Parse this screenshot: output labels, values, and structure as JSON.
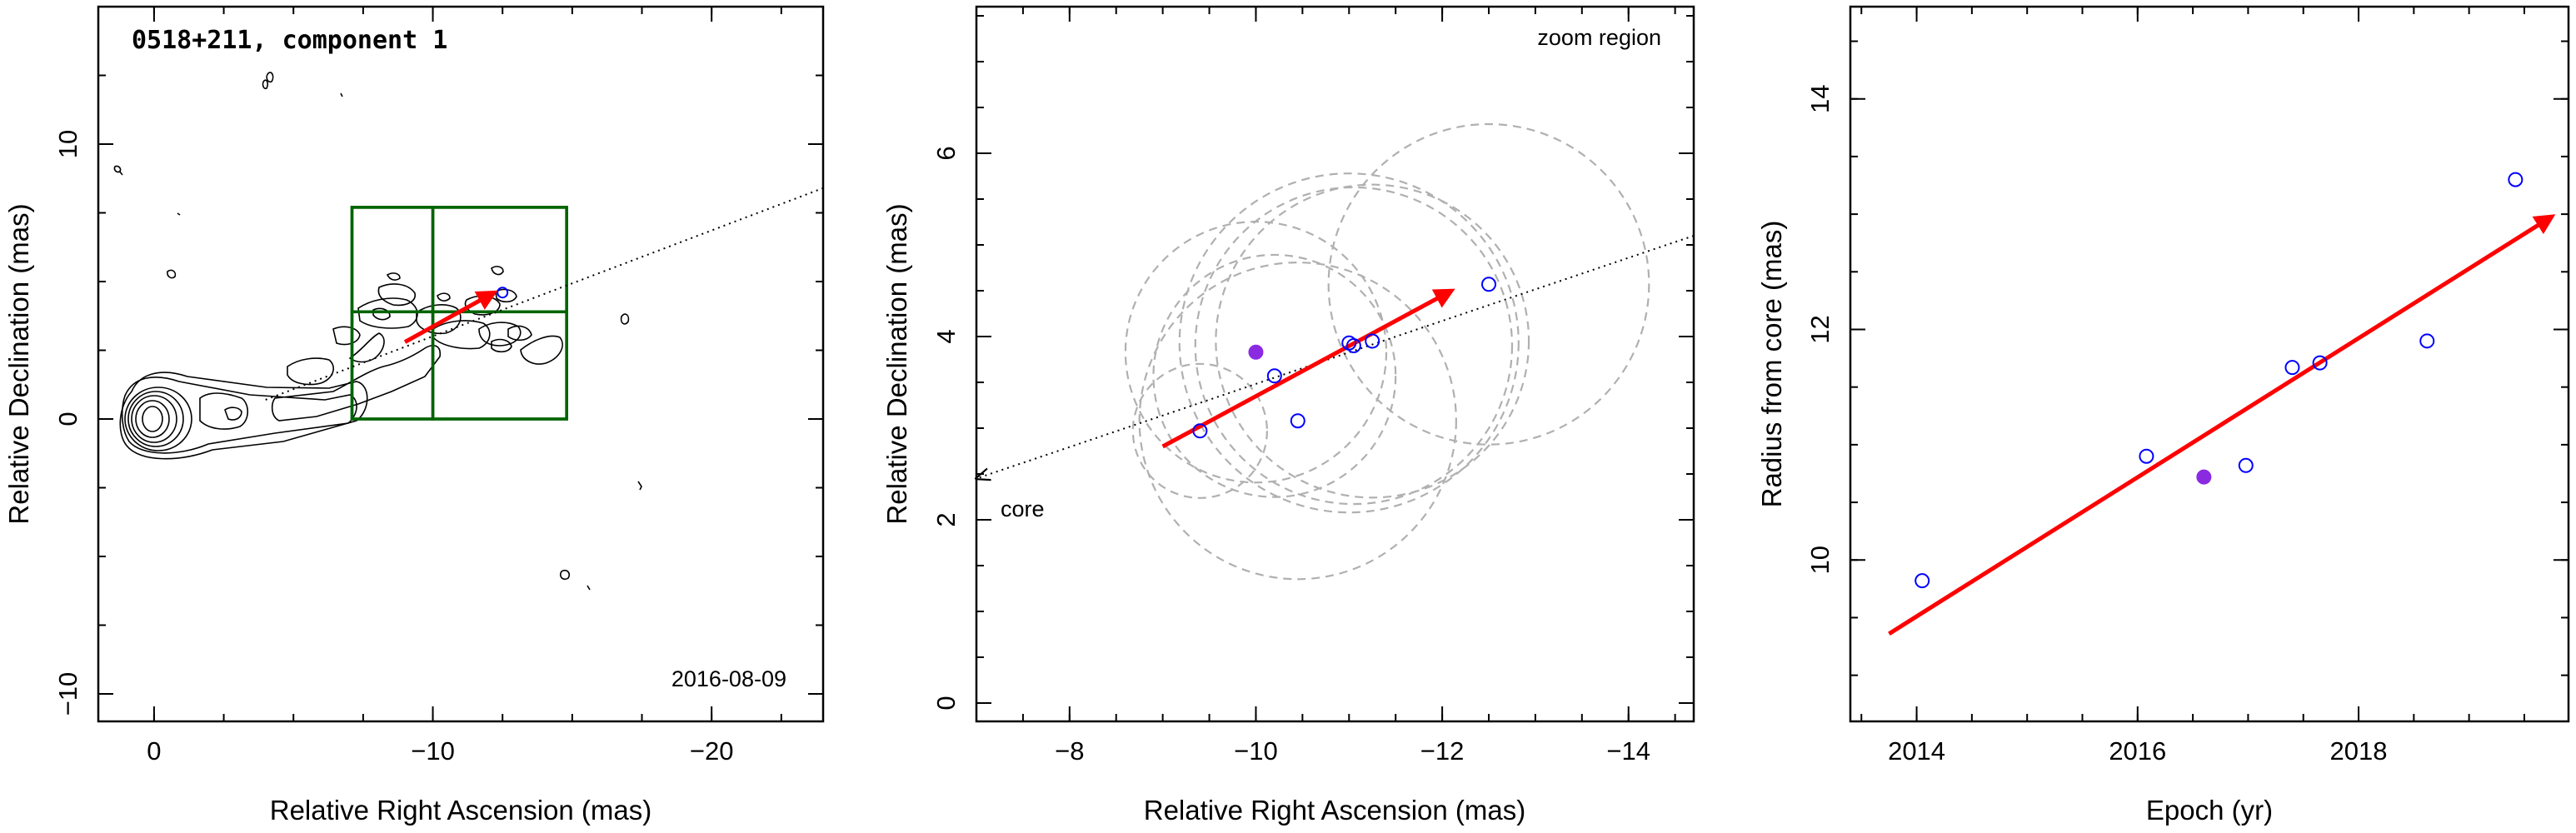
{
  "chart_data": [
    {
      "type": "scatter",
      "title": "0518+211, component 1",
      "date_label": "2016-08-09",
      "xlabel": "Relative Right Ascension (mas)",
      "ylabel": "Relative Declination (mas)",
      "xlim": [
        2,
        -24
      ],
      "ylim": [
        -11,
        15
      ],
      "x_ticks": [
        0,
        -10,
        -20
      ],
      "y_ticks": [
        -10,
        0,
        10
      ],
      "x_tick_labels": [
        "0",
        "−10",
        "−20"
      ],
      "y_tick_labels": [
        "−10",
        "0",
        "10"
      ],
      "series": [
        {
          "x": [
            -12.5
          ],
          "y": [
            4.6
          ]
        }
      ],
      "jet_direction_line": {
        "from": [
          -4.0,
          0.7
        ],
        "to": [
          -24,
          8.4
        ]
      },
      "zoom_boxes": [
        {
          "x0": -7.1,
          "x1": -14.8,
          "y0": 0.0,
          "y1": 7.7
        },
        {
          "x0": -7.1,
          "x1": -10.0,
          "y0": 0.0,
          "y1": 3.9
        },
        {
          "x0": -10.0,
          "x1": -14.8,
          "y0": 0.0,
          "y1": 3.9
        },
        {
          "x0": -7.1,
          "x1": -10.0,
          "y0": 3.9,
          "y1": 7.7
        },
        {
          "x0": -10.0,
          "x1": -14.8,
          "y0": 3.9,
          "y1": 7.7
        }
      ],
      "motion_vector": {
        "from": [
          -9.0,
          2.8
        ],
        "to": [
          -12.2,
          4.6
        ]
      },
      "colors": {
        "zoom_box": "#006400",
        "vector": "#ff0000",
        "points": "#0000ff",
        "contours": "#000000"
      }
    },
    {
      "type": "scatter",
      "annotation_top": "zoom region",
      "annotation_core": "core",
      "xlabel": "Relative Right Ascension (mas)",
      "ylabel": "Relative Declination (mas)",
      "xlim": [
        -7.0,
        -14.7
      ],
      "ylim": [
        -0.2,
        7.6
      ],
      "x_ticks": [
        -8,
        -10,
        -12,
        -14
      ],
      "y_ticks": [
        0,
        2,
        4,
        6
      ],
      "x_tick_labels": [
        "−8",
        "−10",
        "−12",
        "−14"
      ],
      "y_tick_labels": [
        "0",
        "2",
        "4",
        "6"
      ],
      "series": [
        {
          "x": [
            -9.4,
            -10.2,
            -10.45,
            -11.0,
            -11.05,
            -11.25,
            -12.5
          ],
          "y": [
            2.97,
            3.57,
            3.08,
            3.93,
            3.9,
            3.95,
            4.57
          ],
          "marker": "open",
          "color": "#0000ff"
        },
        {
          "x": [
            -10.0
          ],
          "y": [
            3.83
          ],
          "marker": "filled",
          "color": "#8a2be2"
        }
      ],
      "uncertainty_circles": [
        {
          "x": -9.4,
          "y": 2.97,
          "r": 0.72
        },
        {
          "x": -10.2,
          "y": 3.57,
          "r": 1.3
        },
        {
          "x": -10.45,
          "y": 3.08,
          "r": 1.7
        },
        {
          "x": -11.0,
          "y": 3.93,
          "r": 1.82
        },
        {
          "x": -11.05,
          "y": 3.9,
          "r": 1.7
        },
        {
          "x": -11.25,
          "y": 3.95,
          "r": 1.68
        },
        {
          "x": -10.0,
          "y": 3.83,
          "r": 1.4
        },
        {
          "x": -12.5,
          "y": 4.57,
          "r": 1.72
        }
      ],
      "jet_direction_line": {
        "from": [
          -14.7,
          5.1
        ],
        "to": [
          -7.0,
          2.45
        ]
      },
      "motion_vector": {
        "from": [
          -9.0,
          2.8
        ],
        "to": [
          -12.1,
          4.5
        ]
      },
      "colors": {
        "vector": "#ff0000",
        "circles": "#b0b0b0",
        "open_points": "#0000ff",
        "filled_point": "#8a2be2"
      }
    },
    {
      "type": "scatter",
      "xlabel": "Epoch (yr)",
      "ylabel": "Radius from core (mas)",
      "xlim": [
        2013.4,
        2019.9
      ],
      "ylim": [
        8.6,
        14.8
      ],
      "x_ticks": [
        2014,
        2016,
        2018
      ],
      "y_ticks": [
        10,
        12,
        14
      ],
      "x_tick_labels": [
        "2014",
        "2016",
        "2018"
      ],
      "y_tick_labels": [
        "10",
        "12",
        "14"
      ],
      "series": [
        {
          "x": [
            2014.05,
            2016.08,
            2016.98,
            2017.4,
            2017.65,
            2018.62,
            2019.42
          ],
          "y": [
            9.82,
            10.9,
            10.82,
            11.67,
            11.71,
            11.9,
            13.3
          ],
          "marker": "open",
          "color": "#0000ff"
        },
        {
          "x": [
            2016.6
          ],
          "y": [
            10.72
          ],
          "marker": "filled",
          "color": "#8a2be2"
        }
      ],
      "fit_line": {
        "from": [
          2013.75,
          9.36
        ],
        "to": [
          2019.75,
          12.98
        ]
      },
      "colors": {
        "fit": "#ff0000",
        "open_points": "#0000ff",
        "filled_point": "#8a2be2"
      }
    }
  ]
}
